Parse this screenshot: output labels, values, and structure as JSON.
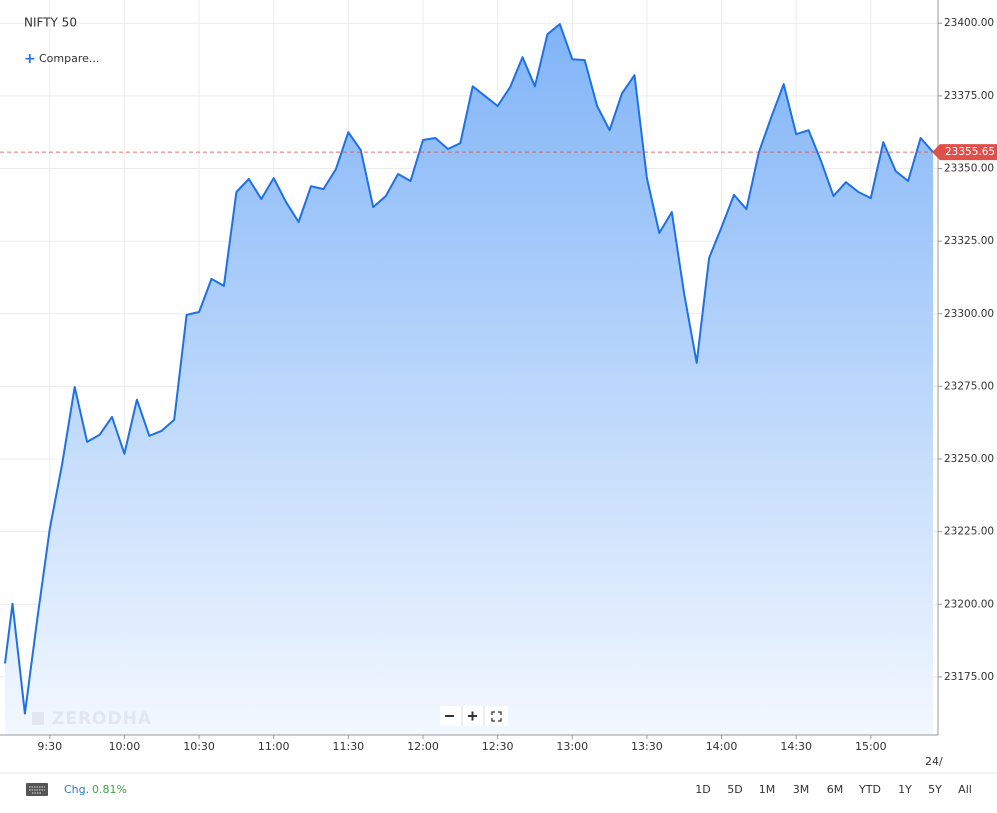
{
  "chart_data": {
    "type": "area",
    "title": "NIFTY 50",
    "x": [
      "9:12",
      "9:15",
      "9:20",
      "9:25",
      "9:30",
      "9:35",
      "9:40",
      "9:45",
      "9:50",
      "9:55",
      "10:00",
      "10:05",
      "10:10",
      "10:15",
      "10:20",
      "10:25",
      "10:30",
      "10:35",
      "10:40",
      "10:45",
      "10:50",
      "10:55",
      "11:00",
      "11:05",
      "11:10",
      "11:15",
      "11:20",
      "11:25",
      "11:30",
      "11:35",
      "11:40",
      "11:45",
      "11:50",
      "11:55",
      "12:00",
      "12:05",
      "12:10",
      "12:15",
      "12:20",
      "12:25",
      "12:30",
      "12:35",
      "12:40",
      "12:45",
      "12:50",
      "12:55",
      "13:00",
      "13:05",
      "13:10",
      "13:15",
      "13:20",
      "13:25",
      "13:30",
      "13:35",
      "13:40",
      "13:45",
      "13:50",
      "13:55",
      "14:00",
      "14:05",
      "14:10",
      "14:15",
      "14:20",
      "14:25",
      "14:30",
      "14:35",
      "14:40",
      "14:45",
      "14:50",
      "14:55",
      "15:00",
      "15:05",
      "15:10",
      "15:15",
      "15:20",
      "15:25"
    ],
    "values": [
      23179.6,
      23200.2,
      23162.4,
      23195.0,
      23226.0,
      23248.4,
      23274.8,
      23255.9,
      23258.3,
      23264.5,
      23251.8,
      23270.4,
      23258.0,
      23259.7,
      23263.5,
      23299.6,
      23300.6,
      23312.0,
      23309.6,
      23341.9,
      23346.4,
      23339.5,
      23346.7,
      23338.4,
      23331.6,
      23343.9,
      23342.9,
      23349.8,
      23362.5,
      23356.3,
      23336.7,
      23340.5,
      23348.1,
      23345.7,
      23359.8,
      23360.5,
      23356.7,
      23358.7,
      23378.3,
      23374.9,
      23371.5,
      23378.0,
      23388.3,
      23378.3,
      23396.2,
      23399.7,
      23387.6,
      23387.3,
      23371.5,
      23363.2,
      23375.9,
      23382.1,
      23346.7,
      23327.8,
      23335.0,
      23306.8,
      23283.1,
      23319.2,
      23329.8,
      23340.9,
      23336.0,
      23355.6,
      23367.7,
      23379.0,
      23361.8,
      23363.2,
      23352.5,
      23340.5,
      23345.3,
      23341.9,
      23339.8,
      23359.1,
      23349.1,
      23345.7,
      23360.5,
      23355.65
    ],
    "color": "#1f70e6",
    "xlim": [
      "9:12",
      "15:27"
    ],
    "xticks": [
      "9:30",
      "10:00",
      "10:30",
      "11:00",
      "11:30",
      "12:00",
      "12:30",
      "13:00",
      "13:30",
      "14:00",
      "14:30",
      "15:00"
    ],
    "ylim": [
      23155,
      23408
    ],
    "yticks": [
      {
        "value": 23175,
        "label": "23175.00"
      },
      {
        "value": 23200,
        "label": "23200.00"
      },
      {
        "value": 23225,
        "label": "23225.00"
      },
      {
        "value": 23250,
        "label": "23250.00"
      },
      {
        "value": 23275,
        "label": "23275.00"
      },
      {
        "value": 23300,
        "label": "23300.00"
      },
      {
        "value": 23325,
        "label": "23325.00"
      },
      {
        "value": 23350,
        "label": "23350.00"
      },
      {
        "value": 23375,
        "label": "23375.00"
      },
      {
        "value": 23400,
        "label": "23400.00"
      }
    ],
    "grid": true,
    "price_line": true,
    "price_color": "#e0504a"
  },
  "ui": {
    "compare": "Compare...",
    "watermark": "ZERODHA",
    "date_hint": "24/",
    "chg_label": "Chg.",
    "chg_value": "0.81%",
    "ranges": [
      "1D",
      "5D",
      "1M",
      "3M",
      "6M",
      "YTD",
      "1Y",
      "5Y",
      "All"
    ]
  }
}
